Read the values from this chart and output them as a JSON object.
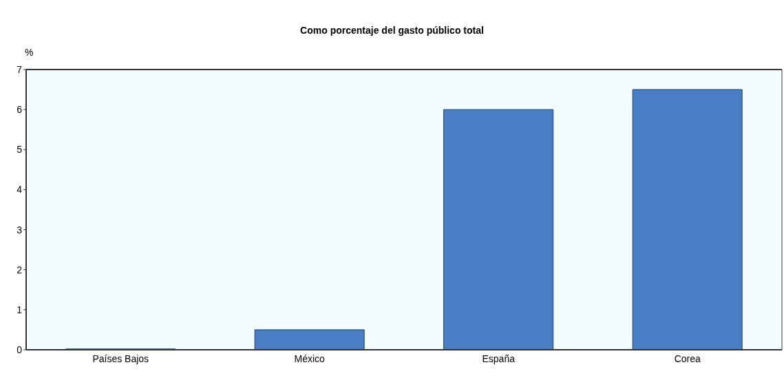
{
  "chart_data": {
    "type": "bar",
    "title": "Como porcentaje del gasto público total",
    "ylabel": "%",
    "categories": [
      "Países Bajos",
      "México",
      "España",
      "Corea"
    ],
    "values": [
      0.02,
      0.5,
      6.0,
      6.5
    ],
    "color": "#4a7ec4",
    "ylim": [
      0,
      7
    ],
    "yticks": [
      0,
      1,
      2,
      3,
      4,
      5,
      6,
      7
    ],
    "grid": false
  }
}
